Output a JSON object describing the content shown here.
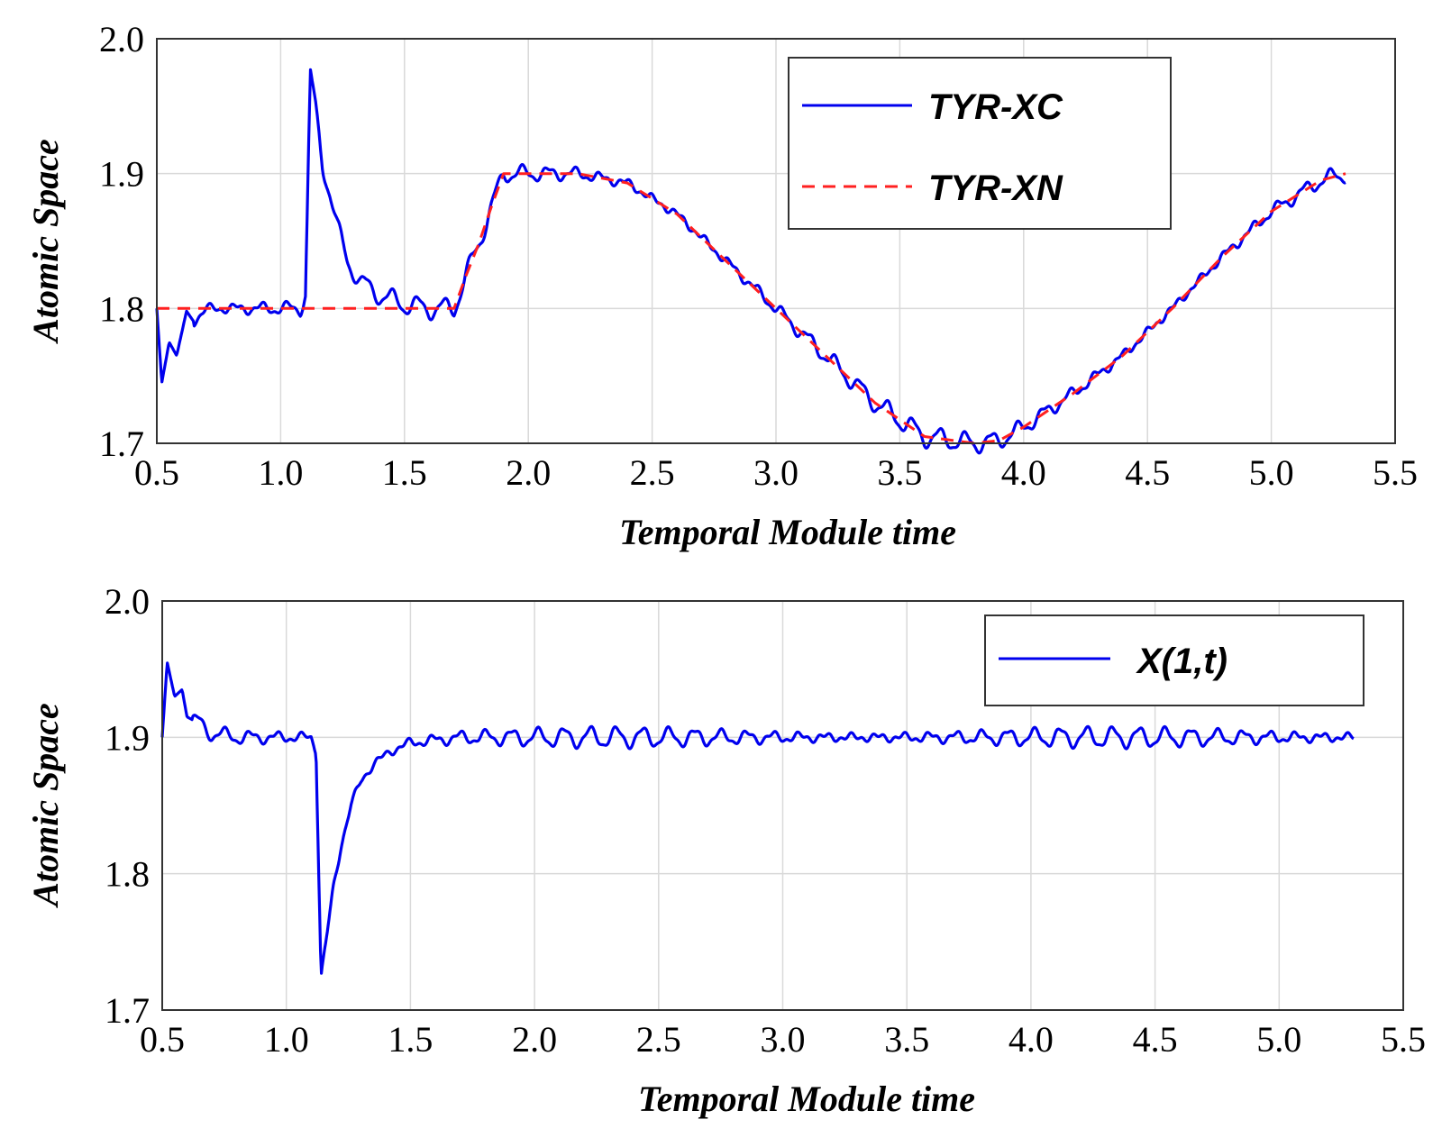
{
  "chart_data": [
    {
      "type": "line",
      "title": "",
      "xlabel": "Temporal Module time",
      "ylabel": "Atomic Space",
      "xlim": [
        0.5,
        5.5
      ],
      "ylim": [
        1.7,
        2.0
      ],
      "xticks": [
        "0.5",
        "1.0",
        "1.5",
        "2.0",
        "2.5",
        "3.0",
        "3.5",
        "4.0",
        "4.5",
        "5.0",
        "5.5"
      ],
      "yticks": [
        "1.7",
        "1.8",
        "1.9",
        "2.0"
      ],
      "grid": true,
      "legend_position": "top-right",
      "series": [
        {
          "name": "TYR-XC",
          "color": "#0000ee",
          "style": "solid",
          "points": [
            [
              0.5,
              1.8
            ],
            [
              0.52,
              1.745
            ],
            [
              0.55,
              1.775
            ],
            [
              0.58,
              1.765
            ],
            [
              0.62,
              1.798
            ],
            [
              0.65,
              1.79
            ],
            [
              0.7,
              1.8
            ],
            [
              0.8,
              1.8
            ],
            [
              0.9,
              1.8
            ],
            [
              1.0,
              1.8
            ],
            [
              1.08,
              1.8
            ],
            [
              1.1,
              1.81
            ],
            [
              1.12,
              1.975
            ],
            [
              1.14,
              1.95
            ],
            [
              1.17,
              1.905
            ],
            [
              1.2,
              1.885
            ],
            [
              1.23,
              1.86
            ],
            [
              1.27,
              1.835
            ],
            [
              1.32,
              1.82
            ],
            [
              1.4,
              1.81
            ],
            [
              1.5,
              1.803
            ],
            [
              1.6,
              1.8
            ],
            [
              1.7,
              1.8
            ],
            [
              1.75,
              1.825
            ],
            [
              1.8,
              1.848
            ],
            [
              1.85,
              1.875
            ],
            [
              1.9,
              1.9
            ],
            [
              2.0,
              1.9
            ],
            [
              2.2,
              1.9
            ],
            [
              2.4,
              1.893
            ],
            [
              2.6,
              1.87
            ],
            [
              2.8,
              1.835
            ],
            [
              3.0,
              1.8
            ],
            [
              3.2,
              1.765
            ],
            [
              3.4,
              1.73
            ],
            [
              3.6,
              1.705
            ],
            [
              3.8,
              1.7
            ],
            [
              3.9,
              1.702
            ],
            [
              4.0,
              1.712
            ],
            [
              4.2,
              1.737
            ],
            [
              4.4,
              1.765
            ],
            [
              4.6,
              1.8
            ],
            [
              4.8,
              1.838
            ],
            [
              5.0,
              1.872
            ],
            [
              5.2,
              1.895
            ],
            [
              5.3,
              1.9
            ]
          ]
        },
        {
          "name": "TYR-XN",
          "color": "#ff2020",
          "style": "dashed",
          "points": [
            [
              0.5,
              1.8
            ],
            [
              1.7,
              1.8
            ],
            [
              1.75,
              1.825
            ],
            [
              1.8,
              1.848
            ],
            [
              1.85,
              1.875
            ],
            [
              1.9,
              1.9
            ],
            [
              2.2,
              1.9
            ],
            [
              2.4,
              1.893
            ],
            [
              2.6,
              1.87
            ],
            [
              2.8,
              1.835
            ],
            [
              3.0,
              1.8
            ],
            [
              3.2,
              1.765
            ],
            [
              3.4,
              1.73
            ],
            [
              3.6,
              1.705
            ],
            [
              3.8,
              1.7
            ],
            [
              3.9,
              1.702
            ],
            [
              4.0,
              1.712
            ],
            [
              4.2,
              1.737
            ],
            [
              4.4,
              1.765
            ],
            [
              4.6,
              1.8
            ],
            [
              4.8,
              1.838
            ],
            [
              5.0,
              1.872
            ],
            [
              5.2,
              1.895
            ],
            [
              5.3,
              1.9
            ]
          ]
        }
      ]
    },
    {
      "type": "line",
      "title": "",
      "xlabel": "Temporal Module time",
      "ylabel": "Atomic Space",
      "xlim": [
        0.5,
        5.5
      ],
      "ylim": [
        1.7,
        2.0
      ],
      "xticks": [
        "0.5",
        "1.0",
        "1.5",
        "2.0",
        "2.5",
        "3.0",
        "3.5",
        "4.0",
        "4.5",
        "5.0",
        "5.5"
      ],
      "yticks": [
        "1.7",
        "1.8",
        "1.9",
        "2.0"
      ],
      "grid": true,
      "legend_position": "top-right",
      "series": [
        {
          "name": "X(1,t)",
          "color": "#0000ee",
          "style": "solid",
          "points": [
            [
              0.5,
              1.9
            ],
            [
              0.52,
              1.955
            ],
            [
              0.55,
              1.93
            ],
            [
              0.58,
              1.935
            ],
            [
              0.6,
              1.915
            ],
            [
              0.65,
              1.91
            ],
            [
              0.7,
              1.903
            ],
            [
              0.8,
              1.9
            ],
            [
              1.0,
              1.9
            ],
            [
              1.1,
              1.9
            ],
            [
              1.12,
              1.89
            ],
            [
              1.14,
              1.725
            ],
            [
              1.16,
              1.75
            ],
            [
              1.19,
              1.79
            ],
            [
              1.22,
              1.82
            ],
            [
              1.26,
              1.85
            ],
            [
              1.3,
              1.868
            ],
            [
              1.35,
              1.88
            ],
            [
              1.42,
              1.89
            ],
            [
              1.5,
              1.896
            ],
            [
              1.7,
              1.9
            ],
            [
              2.0,
              1.9
            ],
            [
              3.0,
              1.9
            ],
            [
              4.0,
              1.9
            ],
            [
              5.0,
              1.9
            ],
            [
              5.3,
              1.9
            ]
          ]
        }
      ]
    }
  ]
}
